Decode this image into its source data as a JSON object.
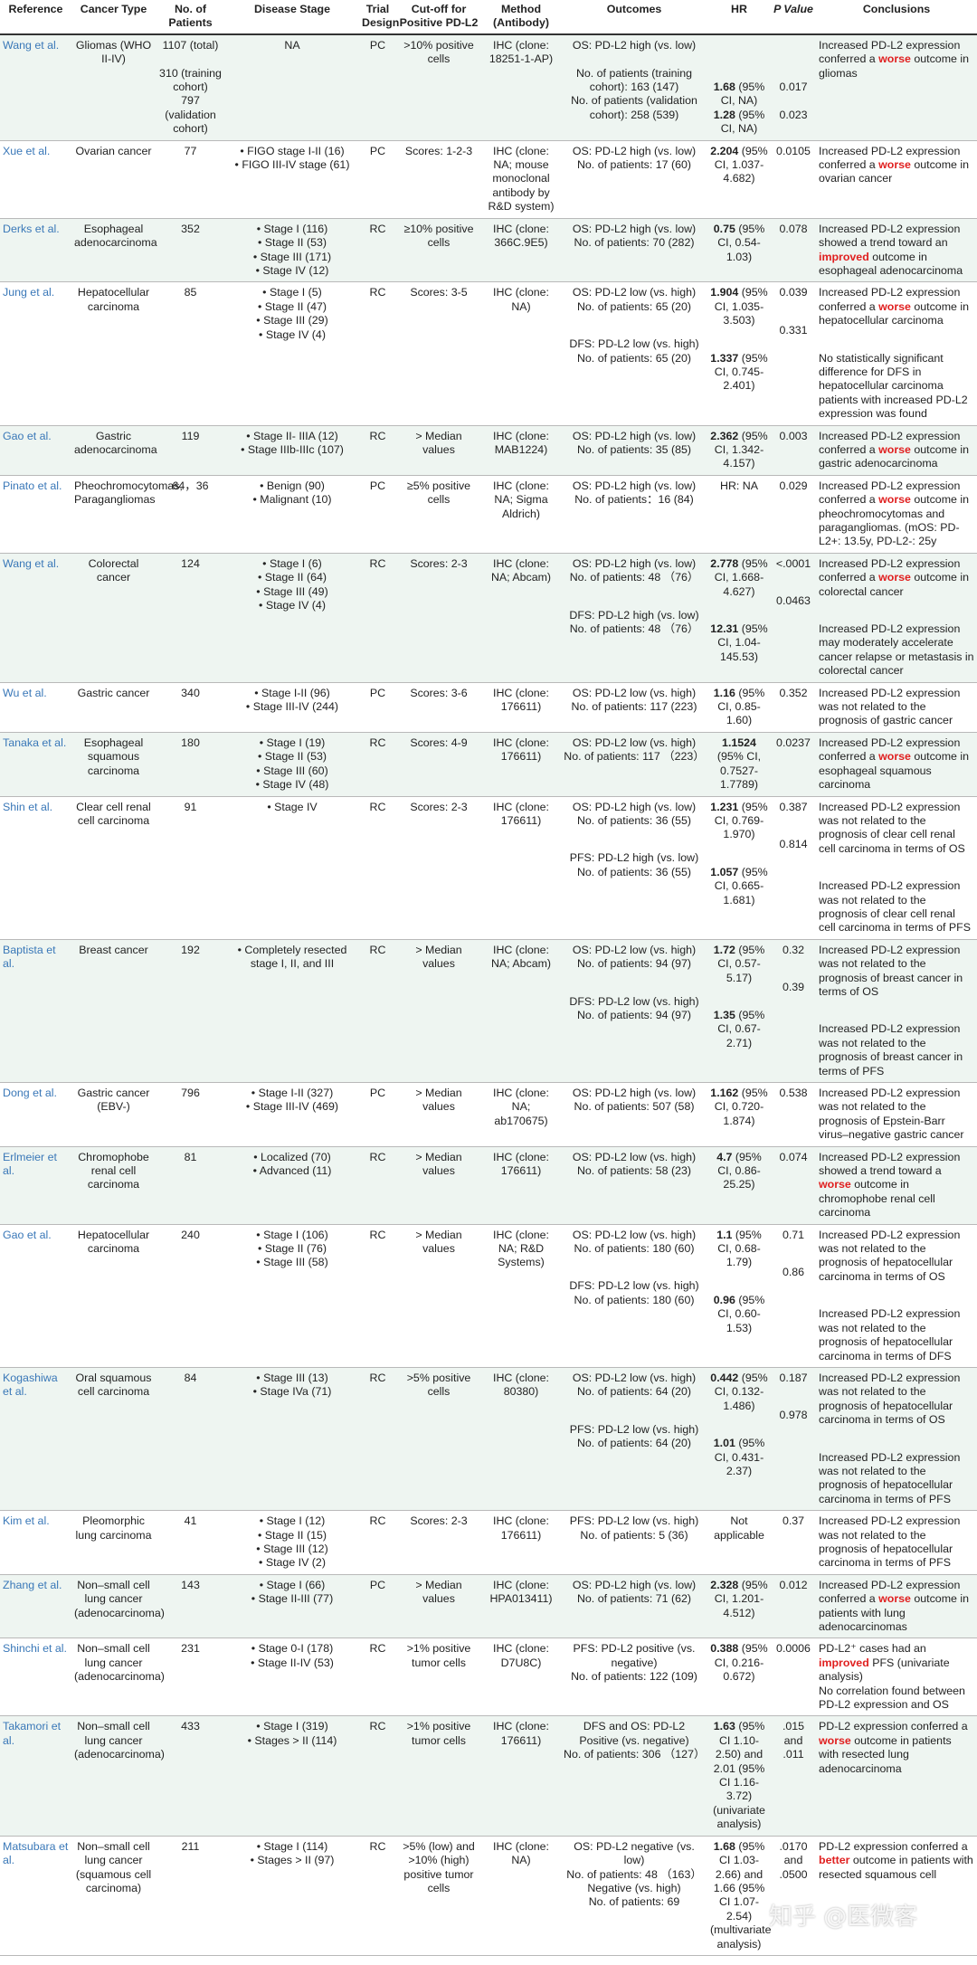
{
  "headers": [
    "Reference",
    "Cancer Type",
    "No. of Patients",
    "Disease Stage",
    "Trial Design",
    "Cut-off for Positive PD-L2",
    "Method (Antibody)",
    "Outcomes",
    "HR",
    "P Value",
    "Conclusions"
  ],
  "rows": [
    {
      "ref": "Wang et al.",
      "cancer": "Gliomas (WHO II-IV)",
      "patients": "1107 (total)\n\n310 (training cohort)\n797 (validation cohort)",
      "stages": [
        "NA"
      ],
      "design": "PC",
      "cutoff": ">10% positive cells",
      "method": "IHC (clone: 18251-1-AP)",
      "results": [
        {
          "outcome": "OS: PD-L2 high (vs. low)\n\nNo. of patients (training cohort): 163 (147)",
          "hr_b": "1.68",
          "hr": " (95% CI, NA)",
          "p": "0.017"
        },
        {
          "outcome": "No. of patients (validation cohort): 258 (539)",
          "hr_b": "1.28",
          "hr": " (95% CI, NA)",
          "p": "0.023"
        }
      ],
      "conclusion": [
        {
          "t": "Increased PD-L2 expression conferred a "
        },
        {
          "t": "worse",
          "red": true
        },
        {
          "t": " outcome in gliomas"
        }
      ]
    },
    {
      "ref": "Xue et al.",
      "cancer": "Ovarian cancer",
      "patients": "77",
      "stages": [
        "FIGO stage I-II (16)",
        "FIGO III-IV stage (61)"
      ],
      "design": "PC",
      "cutoff": "Scores: 1-2-3",
      "method": "IHC (clone: NA; mouse monoclonal antibody by R&D system)",
      "results": [
        {
          "outcome": "OS: PD-L2 high (vs. low)\nNo. of patients: 17 (60)",
          "hr_b": "2.204",
          "hr": " (95% CI, 1.037-4.682)",
          "p": "0.0105"
        }
      ],
      "conclusion": [
        {
          "t": "Increased PD-L2 expression conferred a "
        },
        {
          "t": "worse",
          "red": true
        },
        {
          "t": " outcome in ovarian cancer"
        }
      ]
    },
    {
      "ref": "Derks et al.",
      "cancer": "Esophageal adenocarcinoma",
      "patients": "352",
      "stages": [
        "Stage I (116)",
        "Stage II (53)",
        "Stage III (171)",
        "Stage IV (12)"
      ],
      "design": "RC",
      "cutoff": "≥10% positive cells",
      "method": "IHC (clone: 366C.9E5)",
      "results": [
        {
          "outcome": "OS: PD-L2 high (vs. low)\nNo. of patients: 70 (282)",
          "hr_b": "0.75",
          "hr": " (95% CI, 0.54-1.03)",
          "p": "0.078"
        }
      ],
      "conclusion": [
        {
          "t": "Increased PD-L2 expression showed a trend toward an "
        },
        {
          "t": "improved",
          "red": true
        },
        {
          "t": " outcome in esophageal adenocarcinoma"
        }
      ]
    },
    {
      "ref": "Jung et al.",
      "cancer": "Hepatocellular carcinoma",
      "patients": "85",
      "stages": [
        "Stage I (5)",
        "Stage II (47)",
        "Stage III (29)",
        "Stage IV (4)"
      ],
      "design": "RC",
      "cutoff": "Scores: 3-5",
      "method": "IHC (clone: NA)",
      "results": [
        {
          "outcome": "OS: PD-L2 low (vs. high)\nNo. of patients: 65 (20)",
          "hr_b": "1.904",
          "hr": " (95% CI, 1.035-3.503)",
          "p": "0.039",
          "concl": [
            {
              "t": "Increased PD-L2 expression conferred a "
            },
            {
              "t": "worse",
              "red": true
            },
            {
              "t": " outcome in hepatocellular carcinoma"
            }
          ]
        },
        {
          "outcome": "DFS: PD-L2 low (vs. high)\nNo. of patients: 65 (20)",
          "hr_b": "1.337",
          "hr": " (95% CI, 0.745-2.401)",
          "p": "0.331",
          "concl": [
            {
              "t": "No statistically significant difference for DFS in hepatocellular carcinoma patients with increased PD-L2 expression was found"
            }
          ]
        }
      ]
    },
    {
      "ref": "Gao et al.",
      "cancer": "Gastric adenocarcinoma",
      "patients": "119",
      "stages": [
        "Stage II- IIIA (12)",
        "Stage IIIb-IIIc (107)"
      ],
      "design": "RC",
      "cutoff": "> Median values",
      "method": "IHC (clone: MAB1224)",
      "results": [
        {
          "outcome": "OS: PD-L2 high (vs. low)\nNo. of patients: 35 (85)",
          "hr_b": "2.362",
          "hr": " (95% CI, 1.342-4.157)",
          "p": "0.003"
        }
      ],
      "conclusion": [
        {
          "t": "Increased PD-L2 expression conferred a "
        },
        {
          "t": "worse",
          "red": true
        },
        {
          "t": " outcome in gastric adenocarcinoma"
        }
      ]
    },
    {
      "ref": "Pinato et al.",
      "cancer": "Pheochromocytomas, Paragangliomas",
      "patients": "64，36",
      "stages": [
        "Benign (90)",
        "Malignant (10)"
      ],
      "design": "PC",
      "cutoff": "≥5% positive cells",
      "method": "IHC (clone: NA; Sigma Aldrich)",
      "results": [
        {
          "outcome": "OS: PD-L2 high (vs. low)\nNo. of patients：16 (84)",
          "hr_b": "",
          "hr": "HR: NA",
          "p": "0.029"
        }
      ],
      "conclusion": [
        {
          "t": "Increased PD-L2 expression conferred a "
        },
        {
          "t": "worse",
          "red": true
        },
        {
          "t": " outcome in pheochromocytomas and paragangliomas. (mOS: PD-L2+: 13.5y, PD-L2-: 25y"
        }
      ]
    },
    {
      "ref": "Wang et al.",
      "cancer": "Colorectal cancer",
      "patients": "124",
      "stages": [
        "Stage I (6)",
        "Stage II (64)",
        "Stage III (49)",
        "Stage IV (4)"
      ],
      "design": "RC",
      "cutoff": "Scores: 2-3",
      "method": "IHC (clone: NA; Abcam)",
      "results": [
        {
          "outcome": "OS: PD-L2 high (vs. low)\nNo. of patients: 48 （76）",
          "hr_b": "2.778",
          "hr": " (95% CI, 1.668-4.627)",
          "p": "<.0001",
          "concl": [
            {
              "t": "Increased PD-L2 expression conferred a "
            },
            {
              "t": "worse",
              "red": true
            },
            {
              "t": " outcome in colorectal cancer"
            }
          ]
        },
        {
          "outcome": "DFS: PD-L2 high (vs. low)\nNo. of patients: 48 （76）",
          "hr_b": "12.31",
          "hr": " (95% CI, 1.04-145.53)",
          "p": "0.0463",
          "concl": [
            {
              "t": "Increased PD-L2 expression may moderately accelerate cancer relapse or metastasis in colorectal cancer"
            }
          ]
        }
      ]
    },
    {
      "ref": "Wu et al.",
      "cancer": "Gastric cancer",
      "patients": "340",
      "stages": [
        "Stage I-II (96)",
        "Stage III-IV (244)"
      ],
      "design": "PC",
      "cutoff": "Scores: 3-6",
      "method": "IHC (clone: 176611)",
      "results": [
        {
          "outcome": "OS: PD-L2 low (vs. high)\nNo. of patients: 117 (223)",
          "hr_b": "1.16",
          "hr": " (95% CI, 0.85-1.60)",
          "p": "0.352"
        }
      ],
      "conclusion": [
        {
          "t": "Increased PD-L2 expression was not related to the prognosis of gastric cancer"
        }
      ]
    },
    {
      "ref": "Tanaka et al.",
      "cancer": "Esophageal squamous carcinoma",
      "patients": "180",
      "stages": [
        "Stage I (19)",
        "Stage II (53)",
        "Stage III (60)",
        "Stage IV (48)"
      ],
      "design": "RC",
      "cutoff": "Scores: 4-9",
      "method": "IHC (clone: 176611)",
      "results": [
        {
          "outcome": "OS: PD-L2 low (vs. high)\nNo. of patients: 117 （223）",
          "hr_b": "1.1524",
          "hr": " (95% CI, 0.7527-1.7789)",
          "p": "0.0237"
        }
      ],
      "conclusion": [
        {
          "t": "Increased PD-L2 expression conferred a "
        },
        {
          "t": "worse",
          "red": true
        },
        {
          "t": " outcome in esophageal squamous carcinoma"
        }
      ]
    },
    {
      "ref": "Shin et al.",
      "cancer": "Clear cell renal cell carcinoma",
      "patients": "91",
      "stages": [
        "Stage IV"
      ],
      "design": "RC",
      "cutoff": "Scores: 2-3",
      "method": "IHC (clone: 176611)",
      "results": [
        {
          "outcome": "OS: PD-L2 high (vs. low)\nNo. of patients: 36 (55)",
          "hr_b": "1.231",
          "hr": " (95% CI, 0.769-1.970)",
          "p": "0.387",
          "concl": [
            {
              "t": "Increased PD-L2 expression was not related to the prognosis of clear cell renal cell carcinoma in terms of OS"
            }
          ]
        },
        {
          "outcome": "PFS: PD-L2 high (vs. low)\nNo. of patients: 36 (55)",
          "hr_b": "1.057",
          "hr": " (95% CI, 0.665-1.681)",
          "p": "0.814",
          "concl": [
            {
              "t": "Increased PD-L2 expression was not related to the prognosis of clear cell renal cell carcinoma in terms of PFS"
            }
          ]
        }
      ]
    },
    {
      "ref": "Baptista et al.",
      "cancer": "Breast cancer",
      "patients": "192",
      "stages": [
        "Completely resected stage I, II, and III"
      ],
      "design": "RC",
      "cutoff": "> Median values",
      "method": "IHC (clone: NA; Abcam)",
      "results": [
        {
          "outcome": "OS: PD-L2 low (vs. high)\nNo. of patients: 94 (97)",
          "hr_b": "1.72",
          "hr": " (95% CI, 0.57-5.17)",
          "p": "0.32",
          "concl": [
            {
              "t": "Increased PD-L2 expression was not related to the prognosis of breast cancer in terms of OS"
            }
          ]
        },
        {
          "outcome": "DFS: PD-L2 low (vs. high)\nNo. of patients: 94 (97)",
          "hr_b": "1.35",
          "hr": " (95% CI, 0.67-2.71)",
          "p": "0.39",
          "concl": [
            {
              "t": "Increased PD-L2 expression was not related to the prognosis of breast cancer in terms of PFS"
            }
          ]
        }
      ]
    },
    {
      "ref": "Dong et al.",
      "cancer": "Gastric cancer (EBV-)",
      "patients": "796",
      "stages": [
        "Stage I-II (327)",
        "Stage III-IV (469)"
      ],
      "design": "PC",
      "cutoff": "> Median values",
      "method": "IHC (clone: NA; ab170675)",
      "results": [
        {
          "outcome": "OS: PD-L2 high (vs. low)\nNo. of patients: 507 (58)",
          "hr_b": "1.162",
          "hr": " (95% CI, 0.720-1.874)",
          "p": "0.538"
        }
      ],
      "conclusion": [
        {
          "t": "Increased PD-L2 expression was not related to the prognosis of Epstein-Barr virus–negative gastric cancer"
        }
      ]
    },
    {
      "ref": "Erlmeier et al.",
      "cancer": "Chromophobe renal cell carcinoma",
      "patients": "81",
      "stages": [
        "Localized (70)",
        "Advanced (11)"
      ],
      "design": "RC",
      "cutoff": "> Median values",
      "method": "IHC (clone: 176611)",
      "results": [
        {
          "outcome": "OS: PD-L2 low (vs. high)\nNo. of patients: 58 (23)",
          "hr_b": "4.7",
          "hr": " (95% CI, 0.86-25.25)",
          "p": "0.074"
        }
      ],
      "conclusion": [
        {
          "t": "Increased PD-L2 expression showed a trend toward a "
        },
        {
          "t": "worse",
          "red": true
        },
        {
          "t": " outcome in chromophobe renal cell carcinoma"
        }
      ]
    },
    {
      "ref": "Gao et al.",
      "cancer": "Hepatocellular carcinoma",
      "patients": "240",
      "stages": [
        "Stage I (106)",
        "Stage II (76)",
        "Stage III (58)"
      ],
      "design": "RC",
      "cutoff": "> Median values",
      "method": "IHC (clone: NA; R&D Systems)",
      "results": [
        {
          "outcome": "OS: PD-L2 low (vs. high)\nNo. of patients: 180 (60)",
          "hr_b": "1.1",
          "hr": " (95% CI, 0.68-1.79)",
          "p": "0.71",
          "concl": [
            {
              "t": "Increased PD-L2 expression was not related to the prognosis of hepatocellular carcinoma in terms of OS"
            }
          ]
        },
        {
          "outcome": "DFS: PD-L2 low (vs. high)\nNo. of patients: 180 (60)",
          "hr_b": "0.96",
          "hr": " (95% CI, 0.60-1.53)",
          "p": "0.86",
          "concl": [
            {
              "t": "Increased PD-L2 expression was not related to the prognosis of hepatocellular carcinoma in terms of DFS"
            }
          ]
        }
      ]
    },
    {
      "ref": "Kogashiwa et al.",
      "cancer": "Oral squamous cell carcinoma",
      "patients": "84",
      "stages": [
        "Stage III (13)",
        "Stage IVa (71)"
      ],
      "design": "RC",
      "cutoff": ">5% positive cells",
      "method": "IHC (clone: 80380)",
      "results": [
        {
          "outcome": "OS: PD-L2 low (vs. high)\nNo. of patients: 64 (20)",
          "hr_b": "0.442",
          "hr": " (95% CI, 0.132-1.486)",
          "p": "0.187",
          "concl": [
            {
              "t": "Increased PD-L2 expression was not related to the prognosis of hepatocellular carcinoma in terms of OS"
            }
          ]
        },
        {
          "outcome": "PFS: PD-L2 low (vs. high)\nNo. of patients: 64 (20)",
          "hr_b": "1.01",
          "hr": " (95% CI, 0.431-2.37)",
          "p": "0.978",
          "concl": [
            {
              "t": "Increased PD-L2 expression was not related to the prognosis of hepatocellular carcinoma in terms of PFS"
            }
          ]
        }
      ]
    },
    {
      "ref": "Kim et al.",
      "cancer": "Pleomorphic lung carcinoma",
      "patients": "41",
      "stages": [
        "Stage I (12)",
        "Stage II (15)",
        "Stage III (12)",
        "Stage IV (2)"
      ],
      "design": "RC",
      "cutoff": "Scores: 2-3",
      "method": "IHC (clone: 176611)",
      "results": [
        {
          "outcome": "PFS: PD-L2 low (vs. high)\nNo. of patients: 5 (36)",
          "hr_b": "",
          "hr": "Not applicable",
          "p": "0.37"
        }
      ],
      "conclusion": [
        {
          "t": "Increased PD-L2 expression was not related to the prognosis of hepatocellular carcinoma in terms of PFS"
        }
      ]
    },
    {
      "ref": "Zhang et al.",
      "cancer": "Non–small cell lung cancer (adenocarcinoma)",
      "patients": "143",
      "stages": [
        "Stage I (66)",
        "Stage II-III (77)"
      ],
      "design": "PC",
      "cutoff": "> Median values",
      "method": "IHC (clone: HPA013411)",
      "results": [
        {
          "outcome": "OS: PD-L2 high (vs. low)\nNo. of patients: 71 (62)",
          "hr_b": "2.328",
          "hr": " (95% CI, 1.201-4.512)",
          "p": "0.012"
        }
      ],
      "conclusion": [
        {
          "t": "Increased PD-L2 expression conferred a "
        },
        {
          "t": "worse",
          "red": true
        },
        {
          "t": " outcome in patients with lung adenocarcinomas"
        }
      ]
    },
    {
      "ref": "Shinchi et al.",
      "cancer": "Non–small cell lung cancer (adenocarcinoma)",
      "patients": "231",
      "stages": [
        "Stage 0-I (178)",
        "Stage II-IV (53)"
      ],
      "design": "RC",
      "cutoff": ">1% positive tumor cells",
      "method": "IHC (clone: D7U8C)",
      "results": [
        {
          "outcome": "PFS: PD-L2 positive (vs. negative)\nNo. of patients: 122 (109)",
          "hr_b": "0.388",
          "hr": " (95% CI, 0.216-0.672)",
          "p": "0.0006"
        }
      ],
      "conclusion": [
        {
          "t": "PD-L2⁺ cases had an "
        },
        {
          "t": "improved",
          "red": true
        },
        {
          "t": " PFS (univariate analysis)\nNo correlation found between PD-L2 expression and OS"
        }
      ]
    },
    {
      "ref": "Takamori et al.",
      "cancer": "Non–small cell lung cancer (adenocarcinoma)",
      "patients": "433",
      "stages": [
        "Stage I (319)",
        "Stages > II (114)"
      ],
      "design": "RC",
      "cutoff": ">1% positive tumor cells",
      "method": "IHC (clone: 176611)",
      "results": [
        {
          "outcome": "DFS and OS: PD-L2 Positive (vs. negative)\nNo. of patients: 306 （127）",
          "hr_b": "1.63",
          "hr": " (95% CI 1.10-2.50) and 2.01 (95% CI 1.16-3.72) (univariate analysis)",
          "p": ".015 and .011"
        }
      ],
      "conclusion": [
        {
          "t": "PD-L2 expression conferred a "
        },
        {
          "t": "worse",
          "red": true
        },
        {
          "t": " outcome in patients with resected lung adenocarcinoma"
        }
      ]
    },
    {
      "ref": "Matsubara et al.",
      "cancer": "Non–small cell lung cancer (squamous cell carcinoma)",
      "patients": "211",
      "stages": [
        "Stage I (114)",
        "Stages > II (97)"
      ],
      "design": "RC",
      "cutoff": ">5% (low) and >10% (high) positive tumor cells",
      "method": "IHC (clone: NA)",
      "results": [
        {
          "outcome": "OS: PD-L2 negative (vs. low)\nNo. of patients: 48 （163）\nNegative (vs. high)\nNo. of patients: 69",
          "hr_b": "1.68",
          "hr": " (95% CI 1.03-2.66) and 1.66 (95% CI 1.07-2.54) (multivariate analysis)",
          "p": ".0170 and .0500"
        }
      ],
      "conclusion": [
        {
          "t": "PD-L2 expression conferred a "
        },
        {
          "t": "better",
          "red": true
        },
        {
          "t": " outcome in patients with resected squamous cell"
        }
      ]
    }
  ],
  "watermark": "知乎 @医微客"
}
